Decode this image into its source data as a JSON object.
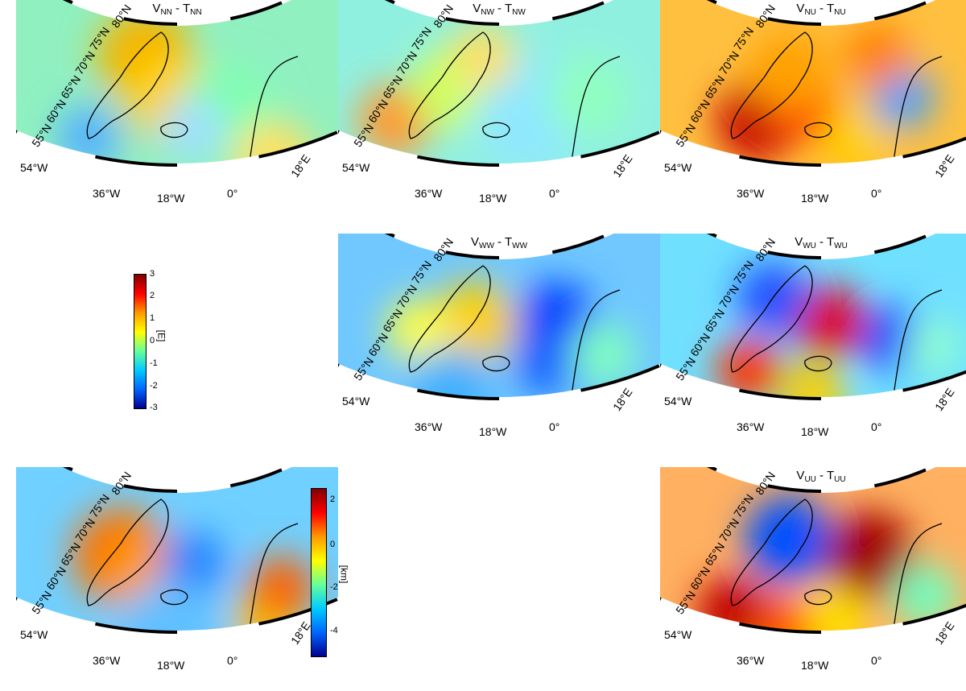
{
  "colors": {
    "land": "#000000",
    "frame_dark": "#000000",
    "frame_light": "#ffffff"
  },
  "panels": [
    {
      "id": "nn",
      "title_main_a": "V",
      "title_sub_a": "NN",
      "title_main_b": " - T",
      "title_sub_b": "NN",
      "lat_labels": [
        "80°N",
        "75°N",
        "70°N",
        "65°N",
        "60°N",
        "55°N"
      ],
      "lon_labels": [
        "54°W",
        "36°W",
        "18°W",
        "0°",
        "18°E"
      ]
    },
    {
      "id": "nw",
      "title_main_a": "V",
      "title_sub_a": "NW",
      "title_main_b": " - T",
      "title_sub_b": "NW",
      "lat_labels": [
        "80°N",
        "75°N",
        "70°N",
        "65°N",
        "60°N",
        "55°N"
      ],
      "lon_labels": [
        "54°W",
        "36°W",
        "18°W",
        "0°",
        "18°E"
      ]
    },
    {
      "id": "nu",
      "title_main_a": "V",
      "title_sub_a": "NU",
      "title_main_b": " - T",
      "title_sub_b": "NU",
      "lat_labels": [
        "80°N",
        "75°N",
        "70°N",
        "65°N",
        "60°N",
        "55°N"
      ],
      "lon_labels": [
        "54°W",
        "36°W",
        "18°W",
        "0°",
        "18°E"
      ]
    },
    {
      "id": "ww",
      "title_main_a": "V",
      "title_sub_a": "WW",
      "title_main_b": " - T",
      "title_sub_b": "WW",
      "lat_labels": [
        "80°N",
        "75°N",
        "70°N",
        "65°N",
        "60°N",
        "55°N"
      ],
      "lon_labels": [
        "54°W",
        "36°W",
        "18°W",
        "0°",
        "18°E"
      ]
    },
    {
      "id": "wu",
      "title_main_a": "V",
      "title_sub_a": "WU",
      "title_main_b": " - T",
      "title_sub_b": "WU",
      "lat_labels": [
        "80°N",
        "75°N",
        "70°N",
        "65°N",
        "60°N",
        "55°N"
      ],
      "lon_labels": [
        "54°W",
        "36°W",
        "18°W",
        "0°",
        "18°E"
      ]
    },
    {
      "id": "topo",
      "title_main_a": "",
      "title_sub_a": "",
      "title_main_b": "",
      "title_sub_b": "",
      "lat_labels": [
        "80°N",
        "75°N",
        "70°N",
        "65°N",
        "60°N",
        "55°N"
      ],
      "lon_labels": [
        "54°W",
        "36°W",
        "18°W",
        "0°",
        "18°E"
      ]
    },
    {
      "id": "uu",
      "title_main_a": "V",
      "title_sub_a": "UU",
      "title_main_b": " - T",
      "title_sub_b": "UU",
      "lat_labels": [
        "80°N",
        "75°N",
        "70°N",
        "65°N",
        "60°N",
        "55°N"
      ],
      "lon_labels": [
        "54°W",
        "36°W",
        "18°W",
        "0°",
        "18°E"
      ]
    }
  ],
  "colorbar_e": {
    "unit": "[E]",
    "ticks": [
      "3",
      "2",
      "1",
      "0",
      "-1",
      "-2",
      "-3"
    ],
    "min": -3,
    "max": 3
  },
  "colorbar_km": {
    "unit": "[km]",
    "ticks": [
      "2",
      "0",
      "-2",
      "-4"
    ],
    "min": -5,
    "max": 2.6
  }
}
